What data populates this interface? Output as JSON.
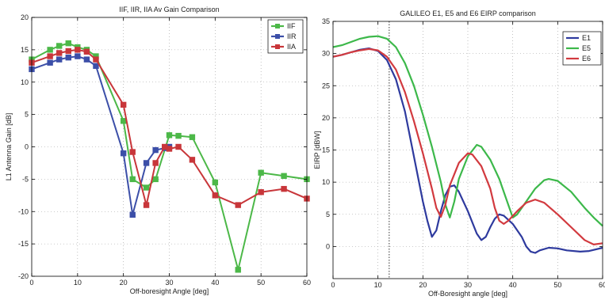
{
  "chart_data": [
    {
      "type": "line",
      "title": "IIF, IIR, IIA Av Gain Comparison",
      "xlabel": "Off-boresight Angle [deg]",
      "ylabel": "L1 Antenna Gain [dB]",
      "xlim": [
        0,
        60
      ],
      "ylim": [
        -20,
        20
      ],
      "xticks": [
        0,
        10,
        20,
        30,
        40,
        50,
        60
      ],
      "yticks": [
        -20,
        -15,
        -10,
        -5,
        0,
        5,
        10,
        15,
        20
      ],
      "grid": "dotted",
      "legend_position": "top-right",
      "markers": true,
      "series": [
        {
          "name": "IIF",
          "color": "#4cb848",
          "points": [
            [
              0,
              13.5
            ],
            [
              4,
              15
            ],
            [
              6,
              15.6
            ],
            [
              8,
              16
            ],
            [
              10,
              15.4
            ],
            [
              12,
              15
            ],
            [
              14,
              14
            ],
            [
              20,
              4
            ],
            [
              22,
              -5
            ],
            [
              25,
              -6.3
            ],
            [
              27,
              -5
            ],
            [
              30,
              1.8
            ],
            [
              32,
              1.7
            ],
            [
              35,
              1.5
            ],
            [
              40,
              -5.5
            ],
            [
              45,
              -19
            ],
            [
              50,
              -4
            ],
            [
              55,
              -4.5
            ],
            [
              60,
              -5
            ]
          ]
        },
        {
          "name": "IIR",
          "color": "#3c4fa8",
          "points": [
            [
              0,
              12
            ],
            [
              4,
              13
            ],
            [
              6,
              13.5
            ],
            [
              8,
              13.8
            ],
            [
              10,
              14
            ],
            [
              12,
              13.5
            ],
            [
              14,
              12.5
            ],
            [
              20,
              -1
            ],
            [
              22,
              -10.5
            ],
            [
              25,
              -2.5
            ],
            [
              27,
              -0.5
            ],
            [
              29,
              -0.2
            ],
            [
              30,
              0
            ]
          ]
        },
        {
          "name": "IIA",
          "color": "#c8363a",
          "points": [
            [
              0,
              13
            ],
            [
              4,
              14
            ],
            [
              6,
              14.5
            ],
            [
              8,
              14.8
            ],
            [
              10,
              15
            ],
            [
              12,
              14.7
            ],
            [
              14,
              13.5
            ],
            [
              20,
              6.5
            ],
            [
              22,
              -0.8
            ],
            [
              25,
              -9
            ],
            [
              27,
              -2.5
            ],
            [
              29,
              0
            ],
            [
              30,
              -0.3
            ],
            [
              32,
              0
            ],
            [
              35,
              -2
            ],
            [
              40,
              -7.5
            ],
            [
              45,
              -9
            ],
            [
              50,
              -7
            ],
            [
              55,
              -6.5
            ],
            [
              60,
              -8
            ]
          ]
        }
      ]
    },
    {
      "type": "line",
      "title": "GALILEO E1, E5 and E6 EIRP comparison",
      "xlabel": "Off-Boresight angle [deg]",
      "ylabel": "EIRP [dBW]",
      "xlim": [
        0,
        60
      ],
      "ylim": [
        -5,
        35
      ],
      "xticks": [
        0,
        10,
        20,
        30,
        40,
        50,
        60
      ],
      "yticks": [
        0,
        5,
        10,
        15,
        20,
        25,
        30,
        35
      ],
      "grid": "dotted",
      "legend_position": "top-right",
      "markers": false,
      "vline_x": 12.5,
      "series": [
        {
          "name": "E1",
          "color": "#2e3a9e",
          "points": [
            [
              0,
              29.5
            ],
            [
              2,
              29.8
            ],
            [
              4,
              30.2
            ],
            [
              6,
              30.6
            ],
            [
              8,
              30.8
            ],
            [
              10,
              30.4
            ],
            [
              12,
              29
            ],
            [
              14,
              26
            ],
            [
              16,
              21
            ],
            [
              18,
              14
            ],
            [
              20,
              7
            ],
            [
              21,
              4
            ],
            [
              22,
              1.5
            ],
            [
              23,
              2.5
            ],
            [
              24,
              5.5
            ],
            [
              25,
              8
            ],
            [
              26,
              9.3
            ],
            [
              27,
              9.5
            ],
            [
              28,
              8.5
            ],
            [
              30,
              5.5
            ],
            [
              32,
              2
            ],
            [
              33,
              1
            ],
            [
              34,
              1.5
            ],
            [
              35,
              3
            ],
            [
              36,
              4.3
            ],
            [
              37,
              5
            ],
            [
              38,
              4.8
            ],
            [
              40,
              3.5
            ],
            [
              42,
              1.5
            ],
            [
              43,
              0
            ],
            [
              44,
              -0.8
            ],
            [
              45,
              -1
            ],
            [
              46,
              -0.6
            ],
            [
              48,
              -0.2
            ],
            [
              50,
              -0.3
            ],
            [
              52,
              -0.6
            ],
            [
              55,
              -0.8
            ],
            [
              57,
              -0.7
            ],
            [
              60,
              -0.2
            ]
          ]
        },
        {
          "name": "E5",
          "color": "#3cb84a",
          "points": [
            [
              0,
              31
            ],
            [
              2,
              31.3
            ],
            [
              4,
              31.8
            ],
            [
              6,
              32.3
            ],
            [
              8,
              32.6
            ],
            [
              10,
              32.7
            ],
            [
              12,
              32.3
            ],
            [
              14,
              31
            ],
            [
              16,
              28.5
            ],
            [
              18,
              25
            ],
            [
              20,
              20.5
            ],
            [
              22,
              15.5
            ],
            [
              24,
              10
            ],
            [
              25,
              6.5
            ],
            [
              26,
              4.5
            ],
            [
              27,
              7
            ],
            [
              28,
              10.5
            ],
            [
              30,
              14
            ],
            [
              32,
              15.8
            ],
            [
              33,
              15.5
            ],
            [
              35,
              13.5
            ],
            [
              37,
              10.5
            ],
            [
              39,
              6.5
            ],
            [
              40,
              4.5
            ],
            [
              41,
              5
            ],
            [
              43,
              7
            ],
            [
              45,
              9
            ],
            [
              47,
              10.3
            ],
            [
              48,
              10.5
            ],
            [
              50,
              10.2
            ],
            [
              53,
              8.5
            ],
            [
              56,
              6
            ],
            [
              58,
              4.5
            ],
            [
              60,
              3.2
            ]
          ]
        },
        {
          "name": "E6",
          "color": "#d23a3f",
          "points": [
            [
              0,
              29.5
            ],
            [
              2,
              29.8
            ],
            [
              4,
              30.2
            ],
            [
              6,
              30.5
            ],
            [
              8,
              30.7
            ],
            [
              10,
              30.5
            ],
            [
              12,
              29.5
            ],
            [
              14,
              27.5
            ],
            [
              16,
              24
            ],
            [
              18,
              19.5
            ],
            [
              20,
              14.5
            ],
            [
              22,
              9
            ],
            [
              23,
              6
            ],
            [
              24,
              4.6
            ],
            [
              25,
              6.5
            ],
            [
              26,
              9.5
            ],
            [
              28,
              13
            ],
            [
              30,
              14.5
            ],
            [
              31,
              14.3
            ],
            [
              33,
              12.5
            ],
            [
              35,
              9
            ],
            [
              36,
              6
            ],
            [
              37,
              4
            ],
            [
              38,
              3.5
            ],
            [
              39,
              4
            ],
            [
              41,
              5.5
            ],
            [
              43,
              6.8
            ],
            [
              45,
              7.3
            ],
            [
              47,
              6.8
            ],
            [
              50,
              5
            ],
            [
              53,
              3
            ],
            [
              56,
              1
            ],
            [
              58,
              0.3
            ],
            [
              60,
              0.5
            ]
          ]
        }
      ]
    }
  ]
}
